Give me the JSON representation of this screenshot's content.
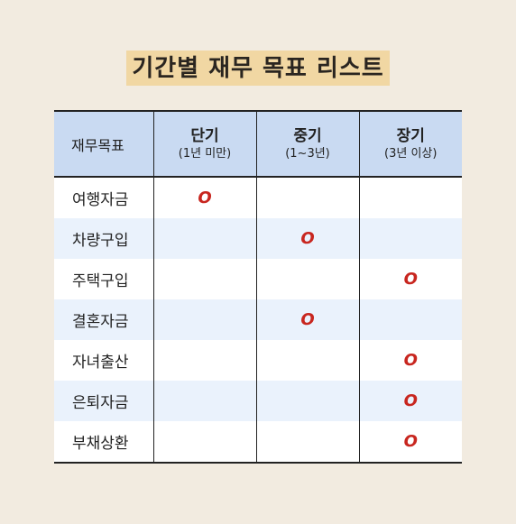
{
  "title": "기간별 재무 목표 리스트",
  "table": {
    "header": {
      "first": "재무목표",
      "columns": [
        {
          "label": "단기",
          "sub": "(1년 미만)"
        },
        {
          "label": "중기",
          "sub": "(1~3년)"
        },
        {
          "label": "장기",
          "sub": "(3년 이상)"
        }
      ]
    },
    "rows": [
      {
        "goal": "여행자금",
        "marks": [
          "O",
          "",
          ""
        ]
      },
      {
        "goal": "차량구입",
        "marks": [
          "",
          "O",
          ""
        ]
      },
      {
        "goal": "주택구입",
        "marks": [
          "",
          "",
          "O"
        ]
      },
      {
        "goal": "결혼자금",
        "marks": [
          "",
          "O",
          ""
        ]
      },
      {
        "goal": "자녀출산",
        "marks": [
          "",
          "",
          "O"
        ]
      },
      {
        "goal": "은퇴자금",
        "marks": [
          "",
          "",
          "O"
        ]
      },
      {
        "goal": "부채상환",
        "marks": [
          "",
          "",
          "O"
        ]
      }
    ]
  },
  "colors": {
    "background": "#f2ebe0",
    "title_highlight": "#f1d7a3",
    "header_fill": "#c9daf2",
    "stripe_fill": "#eaf2fc",
    "mark": "#c8261f"
  }
}
